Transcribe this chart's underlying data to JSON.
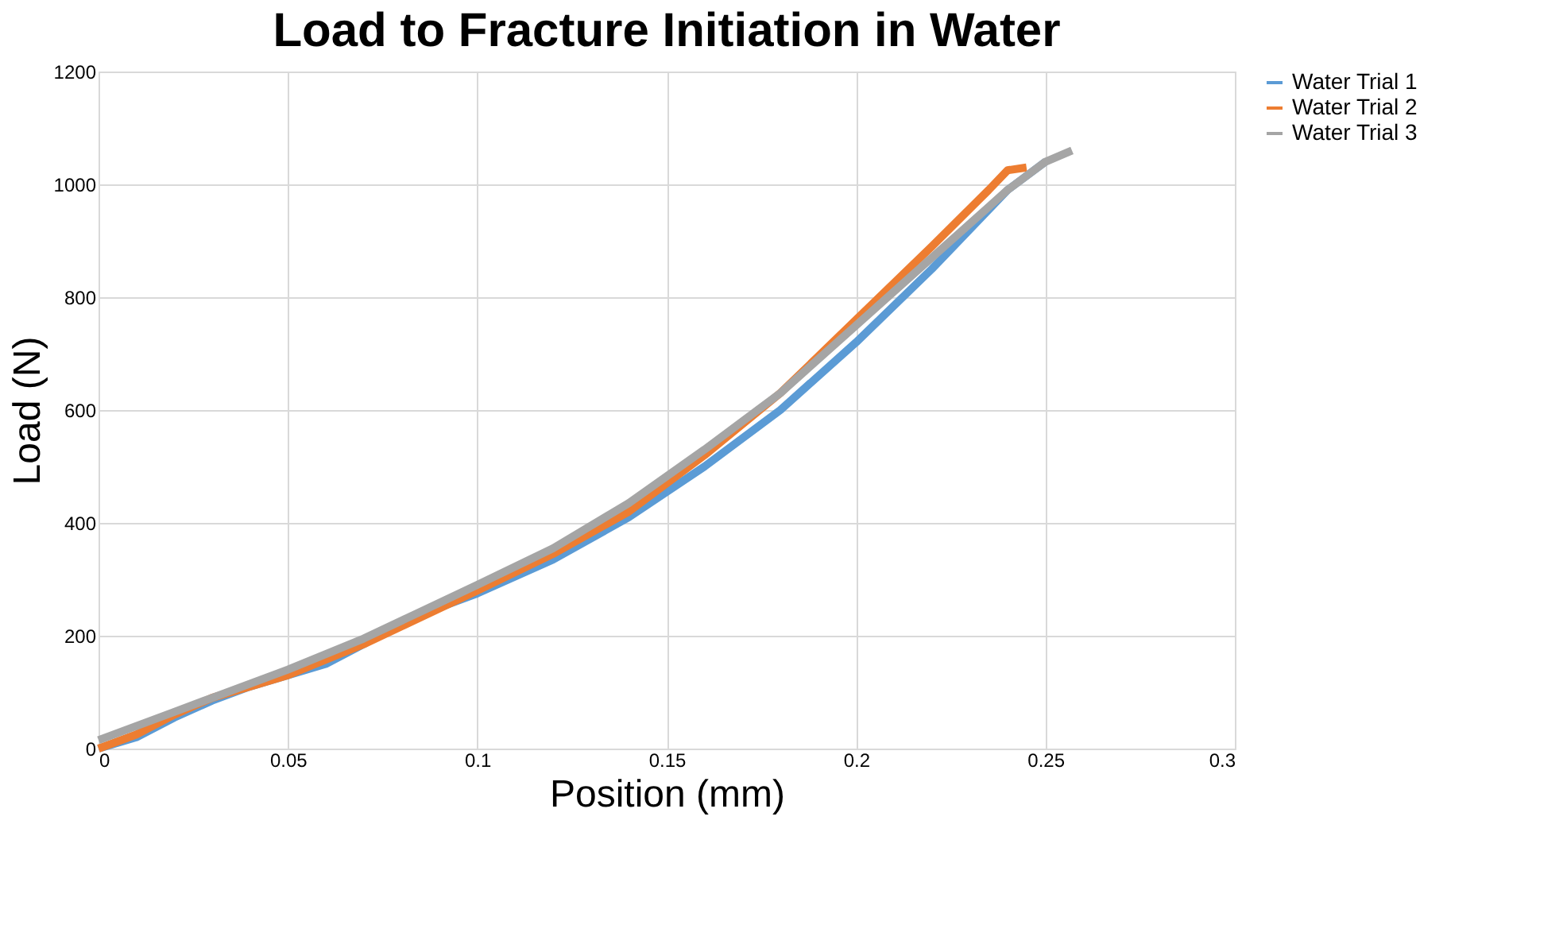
{
  "chart_data": {
    "type": "line",
    "title": "Load to Fracture Initiation in Water",
    "xlabel": "Position (mm)",
    "ylabel": "Load (N)",
    "xlim": [
      0,
      0.3
    ],
    "xticks": [
      0,
      0.05,
      0.1,
      0.15,
      0.2,
      0.25,
      0.3
    ],
    "ylim": [
      0,
      1200
    ],
    "yticks": [
      0,
      200,
      400,
      600,
      800,
      1000,
      1200
    ],
    "grid": true,
    "legend": "right",
    "marker": "none",
    "line_style": "solid",
    "series": [
      {
        "name": "Water Trial 1",
        "color": "#5b9bd5",
        "x": [
          0,
          0.01,
          0.02,
          0.03,
          0.04,
          0.05,
          0.06,
          0.07,
          0.08,
          0.1,
          0.12,
          0.14,
          0.16,
          0.18,
          0.2,
          0.22,
          0.24,
          0.25
        ],
        "values": [
          0,
          20,
          55,
          85,
          110,
          130,
          150,
          185,
          225,
          275,
          335,
          410,
          500,
          600,
          720,
          850,
          990,
          1040
        ]
      },
      {
        "name": "Water Trial 2",
        "color": "#ed7d31",
        "x": [
          0,
          0.01,
          0.02,
          0.03,
          0.05,
          0.07,
          0.1,
          0.12,
          0.14,
          0.16,
          0.18,
          0.2,
          0.22,
          0.235,
          0.24,
          0.245
        ],
        "values": [
          0,
          25,
          60,
          90,
          130,
          185,
          280,
          345,
          420,
          520,
          630,
          760,
          890,
          990,
          1025,
          1030
        ]
      },
      {
        "name": "Water Trial 3",
        "color": "#a5a5a5",
        "x": [
          0,
          0.01,
          0.02,
          0.03,
          0.05,
          0.07,
          0.1,
          0.12,
          0.14,
          0.16,
          0.18,
          0.2,
          0.22,
          0.24,
          0.25,
          0.257
        ],
        "values": [
          15,
          40,
          65,
          90,
          140,
          195,
          290,
          355,
          435,
          530,
          630,
          750,
          870,
          990,
          1040,
          1060
        ]
      }
    ]
  }
}
